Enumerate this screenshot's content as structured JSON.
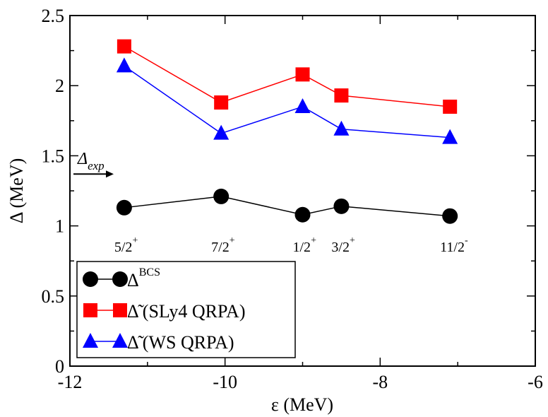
{
  "chart_data": {
    "type": "line",
    "xlabel": "ε (MeV)",
    "ylabel": "Δ (MeV)",
    "xlim": [
      -12,
      -6
    ],
    "ylim": [
      0,
      2.5
    ],
    "x_ticks": [
      "-12",
      "-10",
      "-8",
      "-6"
    ],
    "y_ticks": [
      "0",
      "0.5",
      "1",
      "1.5",
      "2",
      "2.5"
    ],
    "x": [
      -11.3,
      -10.05,
      -9.0,
      -8.5,
      -7.1
    ],
    "series": [
      {
        "name": "Δ^BCS",
        "legend_main": "Δ",
        "legend_sup": "BCS",
        "color": "#000000",
        "marker": "circle",
        "values": [
          1.13,
          1.21,
          1.08,
          1.14,
          1.07
        ]
      },
      {
        "name": "Δ̃ (SLy4 QRPA)",
        "legend_main": "Δ̃",
        "legend_rest": " (SLy4 QRPA)",
        "color": "#ff0000",
        "marker": "square",
        "values": [
          2.28,
          1.88,
          2.08,
          1.93,
          1.85
        ]
      },
      {
        "name": "Δ̃ (WS QRPA)",
        "legend_main": "Δ̃",
        "legend_rest": " (WS QRPA)",
        "color": "#0000ff",
        "marker": "triangle",
        "values": [
          2.14,
          1.66,
          1.85,
          1.69,
          1.63
        ]
      }
    ],
    "annotations": [
      {
        "x": -11.3,
        "main": "5/2",
        "sup": "+"
      },
      {
        "x": -10.05,
        "main": "7/2",
        "sup": "+"
      },
      {
        "x": -9.0,
        "main": "1/2",
        "sup": "+"
      },
      {
        "x": -8.5,
        "main": "3/2",
        "sup": "+"
      },
      {
        "x": -7.1,
        "main": "11/2",
        "sup": "-"
      }
    ],
    "delta_exp": {
      "main": "Δ",
      "sub": "exp",
      "value": 1.37
    },
    "legend_position": "bottom-left"
  }
}
